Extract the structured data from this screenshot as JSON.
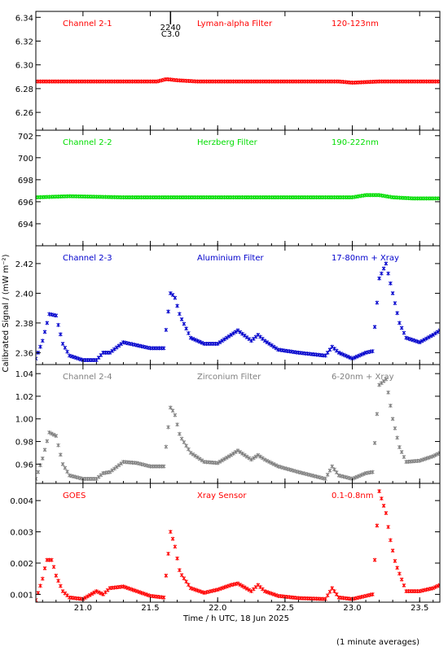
{
  "figure": {
    "ylabel": "Calibrated Signal / (mW m⁻²)",
    "xlabel": "Time / h UTC, 18 Jun 2025",
    "footnote": "(1 minute averages)",
    "flare_marker": {
      "time": 21.65,
      "label_time": "2240",
      "label_class": "C3.0"
    }
  },
  "colors": {
    "red": "#ff0000",
    "green": "#00dd00",
    "blue": "#0000cc",
    "gray": "#808080",
    "axis": "#000000"
  },
  "chart_data": [
    {
      "type": "scatter",
      "panel": "Channel 2-1",
      "labels": [
        "Channel 2-1",
        "Lyman-alpha Filter",
        "120-123nm"
      ],
      "color": "#ff0000",
      "xlim": [
        20.65,
        23.65
      ],
      "ylim": [
        6.245,
        6.345
      ],
      "yticks": [
        6.26,
        6.28,
        6.3,
        6.32,
        6.34
      ],
      "ytick_labels": [
        "6.26",
        "6.28",
        "6.30",
        "6.32",
        "6.34"
      ],
      "x": [
        20.65,
        21.0,
        21.4,
        21.55,
        21.62,
        21.7,
        21.85,
        22.2,
        22.6,
        22.9,
        23.0,
        23.2,
        23.4,
        23.65
      ],
      "y": [
        6.286,
        6.286,
        6.286,
        6.286,
        6.288,
        6.287,
        6.286,
        6.286,
        6.286,
        6.286,
        6.285,
        6.286,
        6.286,
        6.286
      ]
    },
    {
      "type": "scatter",
      "panel": "Channel 2-2",
      "labels": [
        "Channel 2-2",
        "Herzberg Filter",
        "190-222nm"
      ],
      "color": "#00dd00",
      "xlim": [
        20.65,
        23.65
      ],
      "ylim": [
        692.0,
        702.5
      ],
      "yticks": [
        694,
        696,
        698,
        700,
        702
      ],
      "ytick_labels": [
        "694",
        "696",
        "698",
        "700",
        "702"
      ],
      "x": [
        20.65,
        20.9,
        21.3,
        21.7,
        22.2,
        22.6,
        22.9,
        23.0,
        23.1,
        23.2,
        23.3,
        23.45,
        23.65
      ],
      "y": [
        696.4,
        696.5,
        696.4,
        696.4,
        696.4,
        696.4,
        696.4,
        696.4,
        696.6,
        696.6,
        696.4,
        696.3,
        696.3
      ]
    },
    {
      "type": "scatter",
      "panel": "Channel 2-3",
      "labels": [
        "Channel 2-3",
        "Aluminium Filter",
        "17-80nm + Xray"
      ],
      "color": "#0000cc",
      "xlim": [
        20.65,
        23.65
      ],
      "ylim": [
        2.352,
        2.432
      ],
      "yticks": [
        2.36,
        2.38,
        2.4,
        2.42
      ],
      "ytick_labels": [
        "2.36",
        "2.38",
        "2.40",
        "2.42"
      ],
      "x": [
        20.65,
        20.7,
        20.75,
        20.8,
        20.85,
        20.9,
        21.0,
        21.1,
        21.15,
        21.2,
        21.3,
        21.4,
        21.5,
        21.6,
        21.65,
        21.68,
        21.72,
        21.8,
        21.9,
        22.0,
        22.1,
        22.15,
        22.25,
        22.3,
        22.35,
        22.45,
        22.6,
        22.8,
        22.85,
        22.9,
        23.0,
        23.1,
        23.15,
        23.2,
        23.25,
        23.3,
        23.35,
        23.4,
        23.5,
        23.6,
        23.65
      ],
      "y": [
        2.356,
        2.368,
        2.386,
        2.385,
        2.366,
        2.358,
        2.355,
        2.355,
        2.36,
        2.36,
        2.367,
        2.365,
        2.363,
        2.363,
        2.4,
        2.398,
        2.385,
        2.37,
        2.366,
        2.366,
        2.372,
        2.375,
        2.368,
        2.372,
        2.368,
        2.362,
        2.36,
        2.358,
        2.364,
        2.36,
        2.356,
        2.36,
        2.361,
        2.41,
        2.42,
        2.4,
        2.38,
        2.37,
        2.367,
        2.372,
        2.375
      ]
    },
    {
      "type": "scatter",
      "panel": "Channel 2-4",
      "labels": [
        "Channel 2-4",
        "Zirconium Filter",
        "6-20nm + Xray"
      ],
      "color": "#808080",
      "xlim": [
        20.65,
        23.65
      ],
      "ylim": [
        0.943,
        1.048
      ],
      "yticks": [
        0.96,
        0.98,
        1.0,
        1.02,
        1.04
      ],
      "ytick_labels": [
        "0.96",
        "0.98",
        "1.00",
        "1.02",
        "1.04"
      ],
      "x": [
        20.65,
        20.7,
        20.75,
        20.8,
        20.85,
        20.9,
        21.0,
        21.1,
        21.15,
        21.2,
        21.3,
        21.4,
        21.5,
        21.6,
        21.65,
        21.68,
        21.72,
        21.8,
        21.9,
        22.0,
        22.1,
        22.15,
        22.25,
        22.3,
        22.35,
        22.45,
        22.6,
        22.8,
        22.85,
        22.9,
        23.0,
        23.1,
        23.15,
        23.2,
        23.25,
        23.3,
        23.35,
        23.4,
        23.5,
        23.6,
        23.65
      ],
      "y": [
        0.947,
        0.965,
        0.988,
        0.985,
        0.96,
        0.95,
        0.947,
        0.947,
        0.952,
        0.953,
        0.962,
        0.961,
        0.958,
        0.958,
        1.01,
        1.005,
        0.985,
        0.97,
        0.962,
        0.961,
        0.968,
        0.972,
        0.964,
        0.968,
        0.964,
        0.958,
        0.953,
        0.947,
        0.958,
        0.95,
        0.947,
        0.952,
        0.953,
        1.03,
        1.035,
        1.0,
        0.975,
        0.962,
        0.963,
        0.967,
        0.97
      ]
    },
    {
      "type": "scatter",
      "panel": "GOES",
      "labels": [
        "GOES",
        "Xray Sensor",
        "0.1-0.8nm"
      ],
      "color": "#ff0000",
      "xlim": [
        20.65,
        23.65
      ],
      "ylim": [
        0.00075,
        0.00455
      ],
      "yticks": [
        0.001,
        0.002,
        0.003,
        0.004
      ],
      "ytick_labels": [
        "0.001",
        "0.002",
        "0.003",
        "0.004"
      ],
      "x": [
        20.65,
        20.7,
        20.73,
        20.77,
        20.8,
        20.85,
        20.9,
        21.0,
        21.1,
        21.15,
        21.2,
        21.3,
        21.4,
        21.5,
        21.6,
        21.65,
        21.68,
        21.72,
        21.8,
        21.9,
        22.0,
        22.1,
        22.15,
        22.25,
        22.3,
        22.35,
        22.45,
        22.6,
        22.8,
        22.85,
        22.9,
        23.0,
        23.1,
        23.15,
        23.2,
        23.25,
        23.28,
        23.32,
        23.4,
        23.5,
        23.6,
        23.65
      ],
      "y": [
        0.00082,
        0.0015,
        0.0021,
        0.0021,
        0.0016,
        0.0011,
        0.0009,
        0.00085,
        0.0011,
        0.001,
        0.0012,
        0.00125,
        0.0011,
        0.00095,
        0.0009,
        0.003,
        0.0026,
        0.0017,
        0.0012,
        0.00105,
        0.00115,
        0.0013,
        0.00135,
        0.0011,
        0.0013,
        0.0011,
        0.00095,
        0.00088,
        0.00085,
        0.0012,
        0.0009,
        0.00085,
        0.00095,
        0.001,
        0.0043,
        0.0036,
        0.0028,
        0.002,
        0.0011,
        0.0011,
        0.0012,
        0.0013
      ]
    }
  ]
}
